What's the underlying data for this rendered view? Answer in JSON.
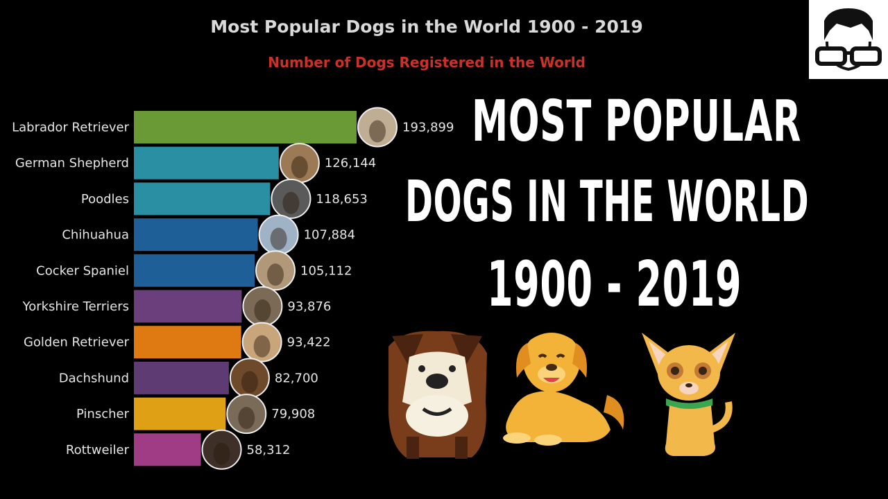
{
  "chart_data": {
    "type": "bar",
    "orientation": "horizontal",
    "title": "Most Popular Dogs in the World 1900 - 2019",
    "subtitle": "Number of Dogs Registered in the World",
    "categories": [
      "Labrador Retriever",
      "German Shepherd",
      "Poodles",
      "Chihuahua",
      "Cocker Spaniel",
      "Yorkshire Terriers",
      "Golden Retriever",
      "Dachshund",
      "Pinscher",
      "Rottweiler"
    ],
    "values": [
      193899,
      126144,
      118653,
      107884,
      105112,
      93876,
      93422,
      82700,
      79908,
      58312
    ],
    "value_labels": [
      "193,899",
      "126,144",
      "118,653",
      "107,884",
      "105,112",
      "93,876",
      "93,422",
      "82,700",
      "79,908",
      "58,312"
    ],
    "colors": [
      "#6a9a35",
      "#2b8fa3",
      "#2b8fa3",
      "#1f5f98",
      "#1f5f98",
      "#6a3f7b",
      "#de7a11",
      "#5f3b73",
      "#e0a016",
      "#a03c85"
    ],
    "grid": false,
    "legend": "none"
  },
  "headline": {
    "line1": "MOST POPULAR",
    "line2": "DOGS IN THE WORLD",
    "line3": "1900 - 2019"
  },
  "icons": {
    "logo": "glasses-face-logo-icon",
    "dogs": [
      "bulldog-cartoon-icon",
      "golden-retriever-cartoon-icon",
      "chihuahua-cartoon-icon"
    ]
  }
}
